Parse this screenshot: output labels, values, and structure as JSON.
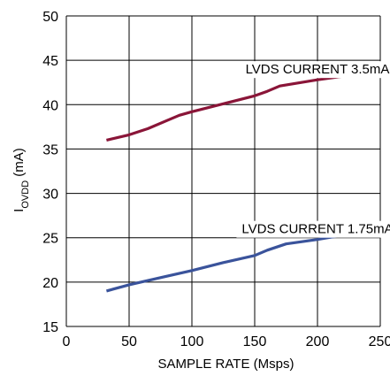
{
  "chart_data": {
    "type": "line",
    "x_ticks": [
      "0",
      "50",
      "100",
      "150",
      "200",
      "250"
    ],
    "y_ticks": [
      "15",
      "20",
      "25",
      "30",
      "35",
      "40",
      "45",
      "50"
    ],
    "xlim": [
      0,
      250
    ],
    "ylim": [
      15,
      50
    ],
    "xlabel": "SAMPLE RATE (Msps)",
    "ylabel_main": "I",
    "ylabel_sub": "OVDD",
    "ylabel_unit": " (mA)",
    "grid": true,
    "series": [
      {
        "name": "LVDS CURRENT 3.5mA",
        "color": "#8a1538",
        "x": [
          32,
          50,
          65,
          80,
          90,
          100,
          125,
          150,
          160,
          170,
          200,
          225,
          250
        ],
        "y": [
          36.0,
          36.6,
          37.3,
          38.2,
          38.8,
          39.2,
          40.1,
          41.0,
          41.5,
          42.1,
          42.8,
          43.3,
          43.9
        ]
      },
      {
        "name": "LVDS CURRENT 1.75mA",
        "color": "#3a539b",
        "x": [
          32,
          50,
          75,
          100,
          125,
          150,
          160,
          175,
          200,
          225,
          250
        ],
        "y": [
          19.0,
          19.7,
          20.5,
          21.3,
          22.2,
          23.0,
          23.6,
          24.3,
          24.8,
          25.4,
          25.9
        ]
      }
    ],
    "annotations": [
      {
        "text": "LVDS CURRENT 3.5mA",
        "x": 200,
        "y": 44.0
      },
      {
        "text": "LVDS CURRENT 1.75mA",
        "x": 200,
        "y": 26.0
      }
    ]
  }
}
